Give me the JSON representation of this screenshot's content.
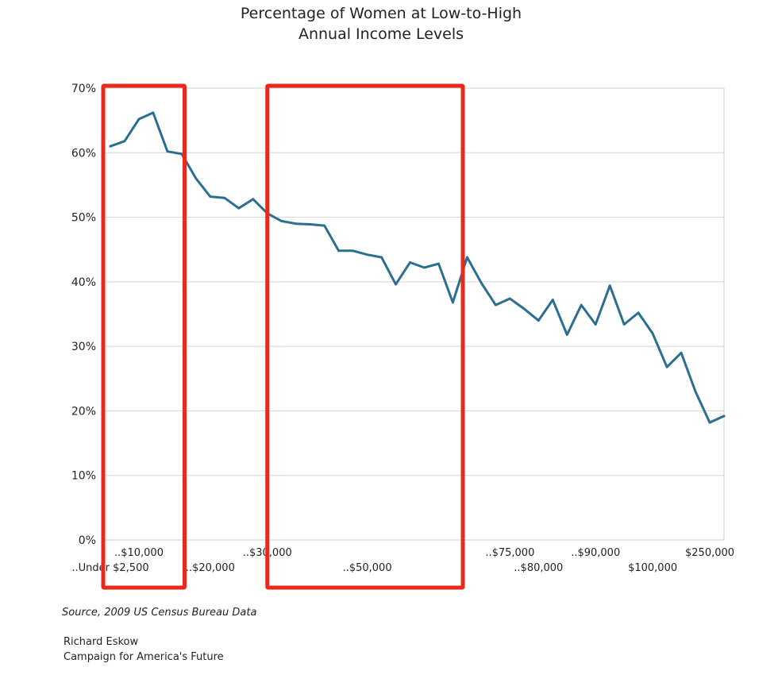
{
  "chart_data": {
    "type": "line",
    "title": [
      "Percentage of Women at Low-to-High",
      "Annual Income Levels"
    ],
    "xlabel": "",
    "ylabel": "",
    "ylim": [
      0,
      70
    ],
    "yticks": [
      "0%",
      "10%",
      "20%",
      "30%",
      "40%",
      "50%",
      "60%",
      "70%"
    ],
    "grid": true,
    "series": [
      {
        "name": "Percentage of Women",
        "color": "#2a6f8f",
        "values": [
          61.0,
          61.8,
          65.2,
          66.2,
          60.2,
          59.8,
          56.0,
          53.2,
          53.0,
          51.4,
          52.8,
          50.6,
          49.4,
          49.0,
          48.9,
          48.7,
          44.8,
          44.8,
          44.2,
          43.8,
          39.6,
          43.0,
          42.2,
          42.8,
          36.8,
          43.8,
          39.8,
          36.4,
          37.4,
          35.8,
          34.0,
          37.2,
          31.8,
          36.4,
          33.4,
          39.4,
          33.4,
          35.2,
          32.0,
          26.8,
          29.0,
          23.0,
          18.2,
          19.2
        ]
      }
    ],
    "x_tick_labels": [
      {
        "index": 0,
        "label": "..Under $2,500",
        "row": 2
      },
      {
        "index": 2,
        "label": "..$10,000",
        "row": 1
      },
      {
        "index": 7,
        "label": "..$20,000",
        "row": 2
      },
      {
        "index": 11,
        "label": "..$30,000",
        "row": 1
      },
      {
        "index": 18,
        "label": "..$50,000",
        "row": 2
      },
      {
        "index": 28,
        "label": "..$75,000",
        "row": 1
      },
      {
        "index": 30,
        "label": "..$80,000",
        "row": 2
      },
      {
        "index": 34,
        "label": "..$90,000",
        "row": 1
      },
      {
        "index": 38,
        "label": "$100,000",
        "row": 2
      },
      {
        "index": 42,
        "label": "$250,000",
        "row": 1
      }
    ],
    "highlight_boxes": [
      {
        "from_index": -0.5,
        "to_index": 5.2,
        "color": "#e8291c"
      },
      {
        "from_index": 11.0,
        "to_index": 24.7,
        "color": "#e8291c"
      }
    ]
  },
  "footer": {
    "source": "Source, 2009 US Census Bureau Data",
    "author": "Richard Eskow",
    "org": "Campaign for America's Future"
  }
}
